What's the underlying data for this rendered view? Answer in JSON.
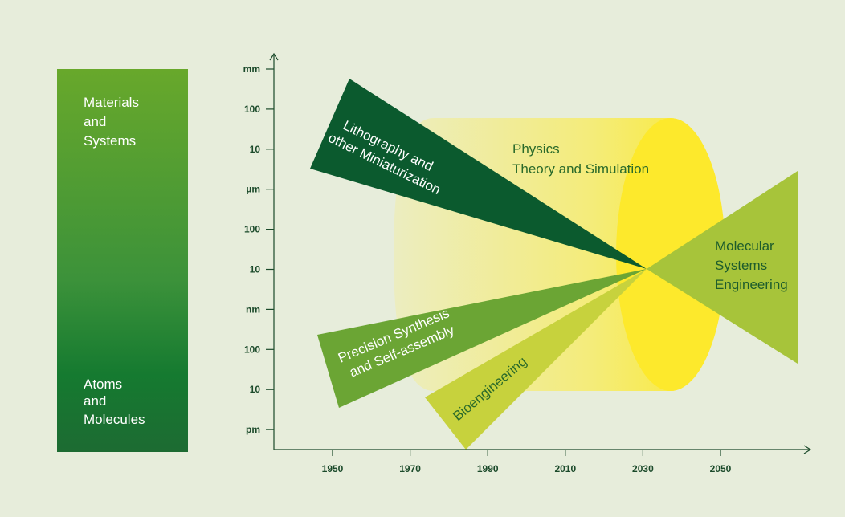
{
  "scale_bar": {
    "top": [
      "Materials",
      "and",
      "Systems"
    ],
    "bottom": [
      "Atoms",
      "and",
      "Molecules"
    ]
  },
  "y_axis": {
    "ticks": [
      "mm",
      "100",
      "10",
      "µm",
      "100",
      "10",
      "nm",
      "100",
      "10",
      "pm"
    ]
  },
  "x_axis": {
    "ticks": [
      "1950",
      "1970",
      "1990",
      "2010",
      "2030",
      "2050"
    ]
  },
  "regions": [
    {
      "label": [
        "Lithography and",
        "other Miniaturization"
      ]
    },
    {
      "label": [
        "Physics",
        "Theory and Simulation"
      ]
    },
    {
      "label": [
        "Precision Synthesis",
        "and Self-assembly"
      ]
    },
    {
      "label": [
        "Bioengineering"
      ]
    },
    {
      "label": [
        "Molecular",
        "Systems",
        "Engineering"
      ]
    }
  ]
}
